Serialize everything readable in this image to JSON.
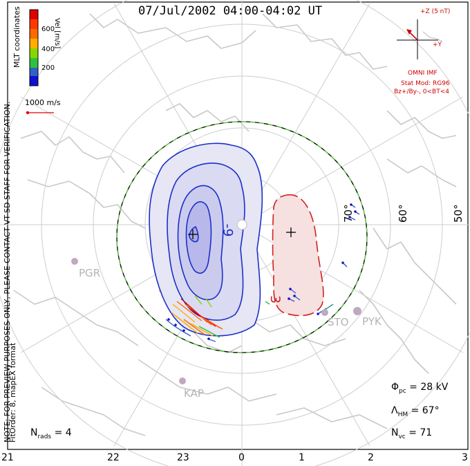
{
  "title": "07/Jul/2002 04:00-04:02 UT",
  "colorbar": {
    "label": "Vel [m/s]",
    "ticks": [
      "600",
      "400",
      "200"
    ],
    "colors": [
      "#e00000",
      "#ff6a00",
      "#ffb000",
      "#8ad600",
      "#30c040",
      "#2a9a8a",
      "#3060c8",
      "#1010d0"
    ]
  },
  "notes": {
    "coords": "MLT coordinates",
    "verification": "NOTE: FOR PREVIEW PURPOSES ONLY, PLEASE CONTACT VT-SD STAFF FOR VERIFICATION.",
    "fit": "FitOrder: 8, mapEX format"
  },
  "scale_vector": "1000 m/s",
  "imf": {
    "bz_label": "+Z (5 nT)",
    "by_label": "+Y",
    "source": "OMNI IMF",
    "stat_model": "Stat Mod: RG96",
    "condition": "Bz+/By-, 0<BT<4"
  },
  "contour_labels": {
    "negative": "-9",
    "positive": "3"
  },
  "latitude_labels": [
    "70°",
    "60°",
    "50°"
  ],
  "stations": [
    "PGR",
    "STO",
    "PYK",
    "KAP"
  ],
  "stats": {
    "phi_pc": {
      "symbol": "Φ",
      "sub": "pc",
      "value": "= 28 kV"
    },
    "lambda_hm": {
      "symbol": "Λ",
      "sub": "HM",
      "value": "= 67°"
    },
    "n_vc": {
      "symbol": "N",
      "sub": "vc",
      "value": "= 71"
    },
    "n_rads": {
      "symbol": "N",
      "sub": "rads",
      "value": "= 4"
    }
  },
  "mlt_ticks": [
    "21",
    "22",
    "23",
    "0",
    "1",
    "2",
    "3"
  ],
  "colors": {
    "coast": "#c8c8c8",
    "negative_fill": "#e4e4f4",
    "positive_fill": "#f6e0e0",
    "negative_line": "#1c2ec8",
    "positive_line": "#d02020",
    "boundary": "#60d040",
    "imf": "#d00000"
  }
}
